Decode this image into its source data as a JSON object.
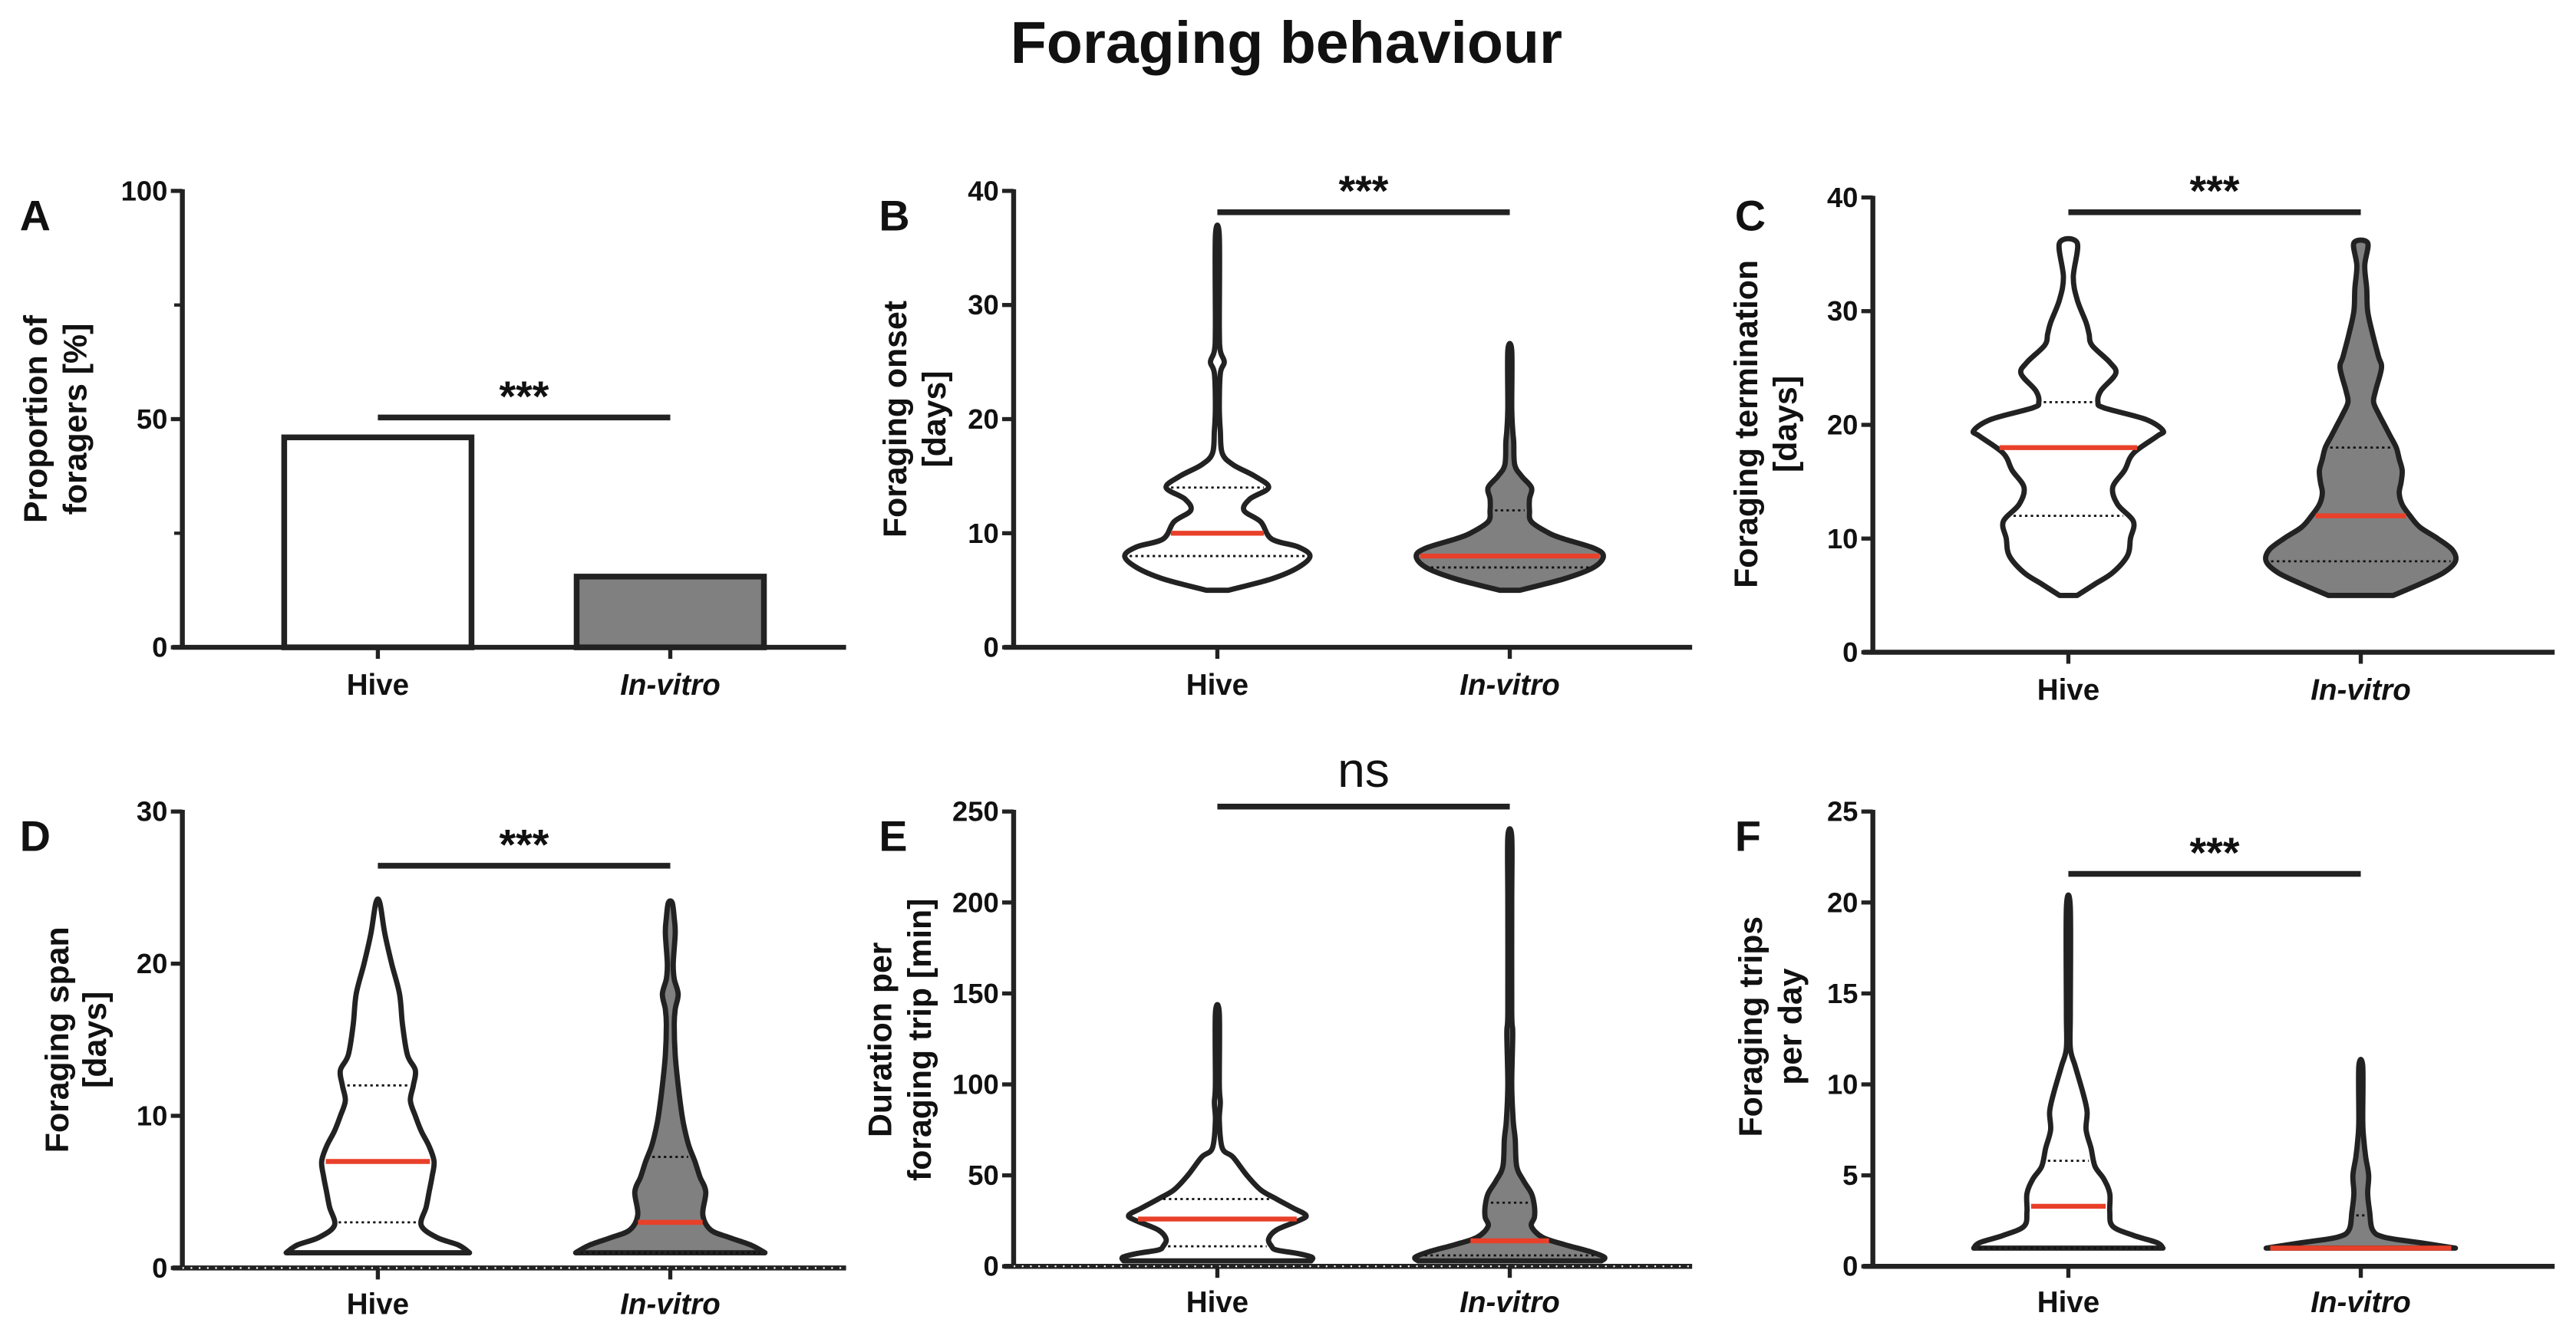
{
  "title": "Foraging behaviour",
  "colors": {
    "hive_fill": "#ffffff",
    "invitro_fill": "#808080",
    "median": "#e8402a",
    "stroke": "#222222"
  },
  "chart_data": [
    {
      "panel": "A",
      "type": "bar",
      "ylabel": [
        "Proportion of",
        "foragers [%]"
      ],
      "ylim": [
        0,
        100
      ],
      "yticks": [
        0,
        50,
        100
      ],
      "minor_yticks": [
        25,
        75
      ],
      "categories": [
        "Hive",
        "In-vitro"
      ],
      "values": [
        46,
        15.5
      ],
      "significance": "***"
    },
    {
      "panel": "B",
      "type": "violin",
      "ylabel": [
        "Foraging onset",
        "[days]"
      ],
      "ylim": [
        0,
        40
      ],
      "yticks": [
        0,
        10,
        20,
        30,
        40
      ],
      "categories": [
        "Hive",
        "In-vitro"
      ],
      "significance": "***",
      "violins": [
        {
          "min": 5,
          "max": 36,
          "median": 10,
          "q1": 8,
          "q3": 14,
          "density": [
            [
              5,
              0.11
            ],
            [
              6,
              0.55
            ],
            [
              7,
              0.82
            ],
            [
              8,
              0.94
            ],
            [
              8.8,
              0.82
            ],
            [
              9.5,
              0.55
            ],
            [
              11,
              0.44
            ],
            [
              12,
              0.27
            ],
            [
              13,
              0.33
            ],
            [
              14,
              0.52
            ],
            [
              15,
              0.38
            ],
            [
              16,
              0.16
            ],
            [
              17,
              0.05
            ],
            [
              19,
              0.03
            ],
            [
              21,
              0.02
            ],
            [
              24,
              0.03
            ],
            [
              25,
              0.07
            ],
            [
              26,
              0.03
            ],
            [
              28,
              0.02
            ],
            [
              36,
              0.015
            ]
          ]
        },
        {
          "min": 5,
          "max": 26,
          "median": 8,
          "q1": 7,
          "q3": 12,
          "density": [
            [
              5,
              0.1
            ],
            [
              6,
              0.55
            ],
            [
              7,
              0.85
            ],
            [
              8,
              0.95
            ],
            [
              8.7,
              0.85
            ],
            [
              9.5,
              0.55
            ],
            [
              10,
              0.4
            ],
            [
              11,
              0.22
            ],
            [
              12,
              0.2
            ],
            [
              13,
              0.2
            ],
            [
              14,
              0.22
            ],
            [
              15,
              0.12
            ],
            [
              16,
              0.05
            ],
            [
              18,
              0.04
            ],
            [
              19,
              0.03
            ],
            [
              21,
              0.02
            ],
            [
              26,
              0.02
            ]
          ]
        }
      ]
    },
    {
      "panel": "C",
      "type": "violin",
      "ylabel": [
        "Foraging termination",
        "[days]"
      ],
      "ylim": [
        0,
        40
      ],
      "yticks": [
        0,
        10,
        20,
        30,
        40
      ],
      "categories": [
        "Hive",
        "In-vitro"
      ],
      "significance": "***",
      "violins": [
        {
          "min": 5,
          "max": 36,
          "median": 18,
          "q1": 12,
          "q3": 22,
          "density": [
            [
              5,
              0.09
            ],
            [
              6,
              0.27
            ],
            [
              7,
              0.45
            ],
            [
              8.5,
              0.6
            ],
            [
              10,
              0.63
            ],
            [
              11.5,
              0.66
            ],
            [
              13,
              0.5
            ],
            [
              14.5,
              0.45
            ],
            [
              16,
              0.57
            ],
            [
              17.5,
              0.66
            ],
            [
              19,
              0.9
            ],
            [
              19.5,
              0.96
            ],
            [
              20.5,
              0.78
            ],
            [
              21.5,
              0.36
            ],
            [
              22,
              0.3
            ],
            [
              23,
              0.33
            ],
            [
              24.5,
              0.48
            ],
            [
              25.5,
              0.42
            ],
            [
              27,
              0.24
            ],
            [
              28,
              0.21
            ],
            [
              29,
              0.18
            ],
            [
              31,
              0.09
            ],
            [
              33,
              0.05
            ],
            [
              36,
              0.09
            ]
          ]
        },
        {
          "min": 5,
          "max": 36,
          "median": 12,
          "q1": 8,
          "q3": 18,
          "density": [
            [
              5,
              0.33
            ],
            [
              6,
              0.6
            ],
            [
              7,
              0.84
            ],
            [
              8,
              0.96
            ],
            [
              9,
              0.93
            ],
            [
              10,
              0.78
            ],
            [
              11,
              0.6
            ],
            [
              12,
              0.5
            ],
            [
              13,
              0.42
            ],
            [
              14,
              0.39
            ],
            [
              15,
              0.41
            ],
            [
              16,
              0.42
            ],
            [
              17,
              0.39
            ],
            [
              18,
              0.36
            ],
            [
              19,
              0.3
            ],
            [
              20,
              0.24
            ],
            [
              21,
              0.18
            ],
            [
              22,
              0.13
            ],
            [
              23,
              0.15
            ],
            [
              25,
              0.21
            ],
            [
              26,
              0.18
            ],
            [
              28,
              0.12
            ],
            [
              30,
              0.07
            ],
            [
              32,
              0.06
            ],
            [
              34,
              0.04
            ],
            [
              36,
              0.07
            ]
          ]
        }
      ]
    },
    {
      "panel": "D",
      "type": "violin",
      "ylabel": [
        "Foraging span",
        "[days]"
      ],
      "ylim": [
        0,
        30
      ],
      "yticks": [
        0,
        10,
        20,
        30
      ],
      "categories": [
        "Hive",
        "In-vitro"
      ],
      "significance": "***",
      "violins": [
        {
          "min": 1,
          "max": 24,
          "median": 7,
          "q1": 3,
          "q3": 12,
          "density": [
            [
              1,
              0.93
            ],
            [
              1.5,
              0.82
            ],
            [
              2,
              0.6
            ],
            [
              2.8,
              0.44
            ],
            [
              4,
              0.49
            ],
            [
              5,
              0.52
            ],
            [
              6,
              0.55
            ],
            [
              7,
              0.57
            ],
            [
              8,
              0.52
            ],
            [
              9,
              0.44
            ],
            [
              10,
              0.38
            ],
            [
              11,
              0.33
            ],
            [
              12,
              0.36
            ],
            [
              13,
              0.38
            ],
            [
              14,
              0.3
            ],
            [
              16,
              0.25
            ],
            [
              18,
              0.22
            ],
            [
              20,
              0.14
            ],
            [
              22,
              0.07
            ],
            [
              24,
              0.01
            ]
          ]
        },
        {
          "min": 1,
          "max": 24,
          "median": 3,
          "q1": 1,
          "q3": 7.3,
          "density": [
            [
              1,
              0.96
            ],
            [
              1.5,
              0.82
            ],
            [
              2,
              0.6
            ],
            [
              2.5,
              0.41
            ],
            [
              3.5,
              0.33
            ],
            [
              5,
              0.36
            ],
            [
              6,
              0.3
            ],
            [
              7,
              0.25
            ],
            [
              8,
              0.19
            ],
            [
              9,
              0.15
            ],
            [
              10,
              0.12
            ],
            [
              12,
              0.08
            ],
            [
              14,
              0.05
            ],
            [
              16,
              0.04
            ],
            [
              17,
              0.05
            ],
            [
              18,
              0.08
            ],
            [
              19,
              0.04
            ],
            [
              20,
              0.03
            ],
            [
              22,
              0.05
            ],
            [
              23,
              0.04
            ],
            [
              24,
              0.01
            ]
          ]
        }
      ]
    },
    {
      "panel": "E",
      "type": "violin",
      "ylabel": [
        "Duration per",
        "foraging trip [min]"
      ],
      "ylim": [
        0,
        250
      ],
      "yticks": [
        0,
        50,
        100,
        150,
        200,
        250
      ],
      "categories": [
        "Hive",
        "In-vitro"
      ],
      "significance": "ns",
      "violins": [
        {
          "min": 3,
          "max": 139,
          "median": 26,
          "q1": 11,
          "q3": 37,
          "density": [
            [
              3,
              0.95
            ],
            [
              5,
              0.96
            ],
            [
              7,
              0.82
            ],
            [
              9,
              0.6
            ],
            [
              11,
              0.55
            ],
            [
              15,
              0.52
            ],
            [
              20,
              0.6
            ],
            [
              25,
              0.82
            ],
            [
              28,
              0.9
            ],
            [
              32,
              0.77
            ],
            [
              37,
              0.6
            ],
            [
              42,
              0.44
            ],
            [
              50,
              0.3
            ],
            [
              60,
              0.16
            ],
            [
              65,
              0.05
            ],
            [
              80,
              0.02
            ],
            [
              90,
              0.03
            ],
            [
              100,
              0.02
            ],
            [
              139,
              0.01
            ]
          ]
        },
        {
          "min": 3,
          "max": 236,
          "median": 14,
          "q1": 6,
          "q3": 35,
          "density": [
            [
              3,
              0.93
            ],
            [
              5,
              0.96
            ],
            [
              8,
              0.82
            ],
            [
              12,
              0.55
            ],
            [
              16,
              0.33
            ],
            [
              22,
              0.22
            ],
            [
              27,
              0.25
            ],
            [
              33,
              0.25
            ],
            [
              40,
              0.22
            ],
            [
              47,
              0.14
            ],
            [
              55,
              0.07
            ],
            [
              70,
              0.055
            ],
            [
              80,
              0.035
            ],
            [
              100,
              0.02
            ],
            [
              128,
              0.03
            ],
            [
              140,
              0.012
            ],
            [
              200,
              0.008
            ],
            [
              236,
              0.005
            ]
          ]
        }
      ]
    },
    {
      "panel": "F",
      "type": "violin",
      "ylabel": [
        "Foraging trips",
        "per day"
      ],
      "ylim": [
        0,
        25
      ],
      "yticks": [
        0,
        5,
        10,
        15,
        20,
        25
      ],
      "categories": [
        "Hive",
        "In-vitro"
      ],
      "significance": "***",
      "violins": [
        {
          "min": 1,
          "max": 19.7,
          "median": 3.3,
          "q1": 1,
          "q3": 5.8,
          "density": [
            [
              1,
              0.96
            ],
            [
              1.3,
              0.9
            ],
            [
              1.7,
              0.66
            ],
            [
              2.2,
              0.45
            ],
            [
              3,
              0.42
            ],
            [
              4,
              0.42
            ],
            [
              4.8,
              0.36
            ],
            [
              5.5,
              0.27
            ],
            [
              6.5,
              0.23
            ],
            [
              7.5,
              0.18
            ],
            [
              8.5,
              0.19
            ],
            [
              9.5,
              0.15
            ],
            [
              11,
              0.07
            ],
            [
              12,
              0.02
            ],
            [
              14,
              0.012
            ],
            [
              19.7,
              0.005
            ]
          ]
        },
        {
          "min": 1,
          "max": 11,
          "median": 1,
          "q1": 1,
          "q3": 2.8,
          "density": [
            [
              1,
              0.96
            ],
            [
              1.3,
              0.6
            ],
            [
              1.6,
              0.24
            ],
            [
              2,
              0.12
            ],
            [
              3,
              0.09
            ],
            [
              4,
              0.07
            ],
            [
              5,
              0.08
            ],
            [
              6,
              0.05
            ],
            [
              7,
              0.03
            ],
            [
              8,
              0.02
            ],
            [
              11,
              0.005
            ]
          ]
        }
      ]
    }
  ]
}
